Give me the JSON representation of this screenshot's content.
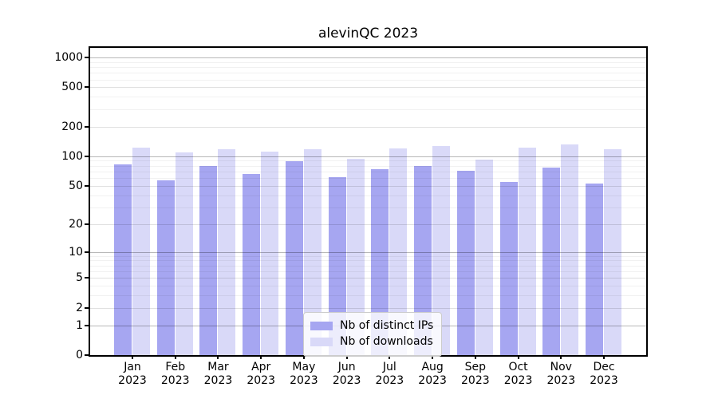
{
  "title": "alevinQC 2023",
  "colors": {
    "ips": "#a6a6f1",
    "downloads": "#d9d9f8"
  },
  "legend": {
    "items": [
      {
        "key": "ips",
        "label": "Nb of distinct IPs"
      },
      {
        "key": "downloads",
        "label": "Nb of downloads"
      }
    ]
  },
  "y_axis": {
    "tick_labels": [
      "1000",
      "500",
      "200",
      "100",
      "50",
      "20",
      "10",
      "5",
      "2",
      "1",
      "0"
    ]
  },
  "chart_data": {
    "type": "bar",
    "title": "alevinQC 2023",
    "categories": [
      "Jan 2023",
      "Feb 2023",
      "Mar 2023",
      "Apr 2023",
      "May 2023",
      "Jun 2023",
      "Jul 2023",
      "Aug 2023",
      "Sep 2023",
      "Oct 2023",
      "Nov 2023",
      "Dec 2023"
    ],
    "series": [
      {
        "name": "Nb of distinct IPs",
        "color_key": "ips",
        "values": [
          83,
          57,
          80,
          66,
          89,
          61,
          74,
          80,
          71,
          55,
          77,
          53
        ]
      },
      {
        "name": "Nb of downloads",
        "color_key": "downloads",
        "values": [
          123,
          110,
          117,
          112,
          118,
          94,
          120,
          127,
          93,
          122,
          133,
          117
        ]
      }
    ],
    "yscale": "log1p",
    "ylim": [
      0,
      1250
    ],
    "yticks": [
      1000,
      500,
      200,
      100,
      50,
      20,
      10,
      5,
      2,
      1,
      0
    ],
    "minor_gridlines": [
      3,
      4,
      6,
      7,
      8,
      9,
      30,
      40,
      60,
      70,
      80,
      90,
      300,
      400,
      600,
      700,
      800,
      900
    ],
    "xlabel": "",
    "ylabel": "",
    "grid": true,
    "legend_position": "lower center"
  }
}
